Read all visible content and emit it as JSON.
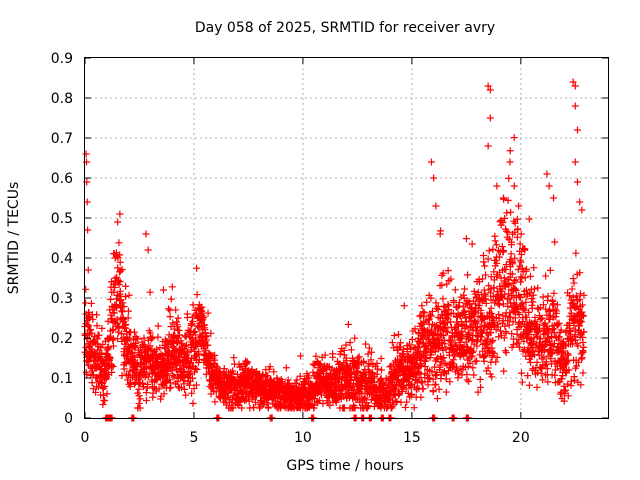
{
  "chart_data": {
    "type": "scatter",
    "title": "Day 058 of 2025, SRMTID for receiver avry",
    "xlabel": "GPS time / hours",
    "ylabel": "SRMTID / TECUs",
    "xlim": [
      0,
      24
    ],
    "ylim": [
      0,
      0.9
    ],
    "xticks": [
      0,
      5,
      10,
      15,
      20
    ],
    "yticks": [
      0,
      0.1,
      0.2,
      0.3,
      0.4,
      0.5,
      0.6,
      0.7,
      0.8,
      0.9
    ],
    "xtick_labels": [
      "0",
      "5",
      "10",
      "15",
      "20"
    ],
    "ytick_labels": [
      "0",
      "0.1",
      "0.2",
      "0.3",
      "0.4",
      "0.5",
      "0.6",
      "0.7",
      "0.8",
      "0.9"
    ],
    "grid": true,
    "marker": "+",
    "color": "#ff0000",
    "profile_hours": [
      0,
      0.2,
      0.5,
      1.0,
      1.3,
      1.6,
      2.0,
      2.4,
      3.0,
      3.5,
      4.0,
      4.5,
      5.0,
      5.3,
      5.7,
      6.2,
      6.8,
      7.5,
      8.2,
      9.0,
      9.6,
      10.2,
      10.8,
      11.4,
      12.0,
      12.6,
      13.2,
      13.8,
      14.4,
      15.0,
      15.5,
      16.0,
      16.5,
      17.0,
      17.5,
      18.0,
      18.5,
      19.0,
      19.5,
      20.0,
      20.5,
      21.0,
      21.5,
      22.0,
      22.5,
      22.9
    ],
    "profile_median": [
      0.2,
      0.17,
      0.15,
      0.11,
      0.28,
      0.3,
      0.15,
      0.12,
      0.15,
      0.11,
      0.17,
      0.13,
      0.17,
      0.24,
      0.13,
      0.08,
      0.07,
      0.09,
      0.07,
      0.06,
      0.05,
      0.06,
      0.09,
      0.08,
      0.1,
      0.08,
      0.08,
      0.05,
      0.12,
      0.12,
      0.17,
      0.2,
      0.21,
      0.2,
      0.2,
      0.23,
      0.24,
      0.3,
      0.36,
      0.3,
      0.22,
      0.18,
      0.22,
      0.12,
      0.25,
      0.2
    ],
    "profile_spread": [
      0.06,
      0.05,
      0.05,
      0.03,
      0.07,
      0.07,
      0.04,
      0.04,
      0.04,
      0.03,
      0.05,
      0.04,
      0.06,
      0.04,
      0.03,
      0.02,
      0.03,
      0.03,
      0.02,
      0.02,
      0.02,
      0.02,
      0.03,
      0.03,
      0.04,
      0.03,
      0.03,
      0.02,
      0.04,
      0.04,
      0.05,
      0.06,
      0.06,
      0.05,
      0.05,
      0.06,
      0.07,
      0.08,
      0.1,
      0.09,
      0.06,
      0.05,
      0.06,
      0.04,
      0.07,
      0.05
    ],
    "outliers": [
      [
        0.05,
        0.66
      ],
      [
        0.07,
        0.64
      ],
      [
        0.08,
        0.59
      ],
      [
        0.1,
        0.54
      ],
      [
        0.12,
        0.47
      ],
      [
        0.15,
        0.37
      ],
      [
        1.6,
        0.51
      ],
      [
        1.5,
        0.49
      ],
      [
        2.8,
        0.46
      ],
      [
        2.9,
        0.42
      ],
      [
        3.6,
        0.32
      ],
      [
        15.9,
        0.64
      ],
      [
        16.0,
        0.6
      ],
      [
        16.1,
        0.53
      ],
      [
        16.3,
        0.46
      ],
      [
        18.5,
        0.83
      ],
      [
        18.6,
        0.82
      ],
      [
        18.6,
        0.75
      ],
      [
        18.5,
        0.68
      ],
      [
        18.9,
        0.58
      ],
      [
        19.2,
        0.55
      ],
      [
        19.5,
        0.64
      ],
      [
        19.7,
        0.58
      ],
      [
        19.9,
        0.53
      ],
      [
        21.2,
        0.61
      ],
      [
        21.3,
        0.58
      ],
      [
        21.5,
        0.55
      ],
      [
        22.4,
        0.84
      ],
      [
        22.5,
        0.83
      ],
      [
        22.5,
        0.78
      ],
      [
        22.6,
        0.72
      ],
      [
        22.5,
        0.64
      ],
      [
        22.6,
        0.59
      ],
      [
        22.7,
        0.54
      ],
      [
        22.8,
        0.52
      ]
    ],
    "zero_hours": [
      0.95,
      1.05,
      1.15,
      2.15,
      6.05,
      8.5,
      10.4,
      12.35,
      12.7,
      13.05,
      13.6,
      13.95,
      15.95,
      16.85,
      17.5
    ]
  }
}
